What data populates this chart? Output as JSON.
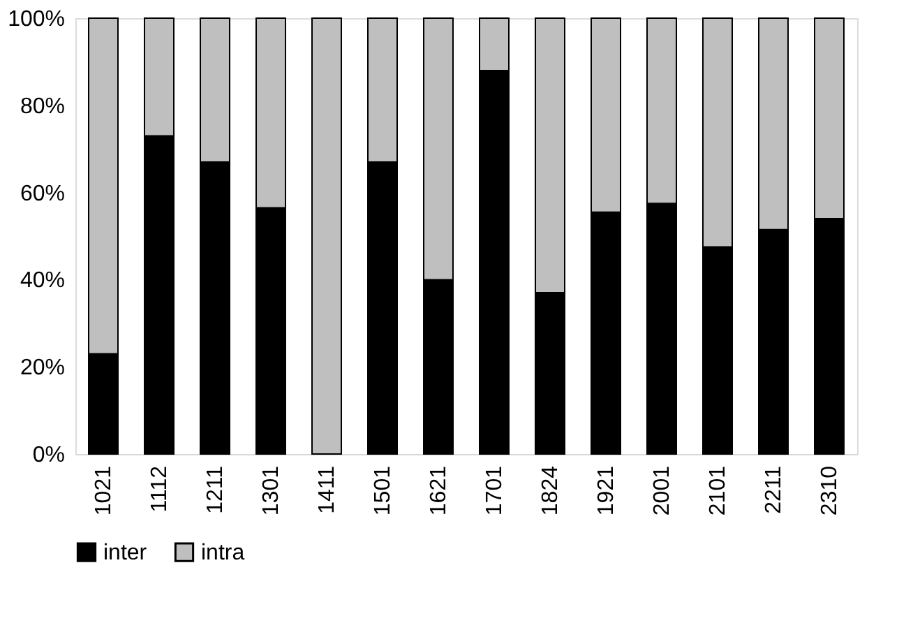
{
  "chart_data": {
    "type": "bar",
    "stacked": true,
    "categories": [
      "1021",
      "1112",
      "1211",
      "1301",
      "1411",
      "1501",
      "1621",
      "1701",
      "1824",
      "1921",
      "2001",
      "2101",
      "2211",
      "2310"
    ],
    "series": [
      {
        "name": "inter",
        "color": "#000000",
        "values": [
          23,
          73,
          67,
          56.5,
          0,
          67,
          40,
          88,
          37,
          55.5,
          57.5,
          47.5,
          51.5,
          54
        ]
      },
      {
        "name": "intra",
        "color": "#bfbfbf",
        "values": [
          77,
          27,
          33,
          43.5,
          100,
          33,
          60,
          12,
          63,
          44.5,
          42.5,
          52.5,
          48.5,
          46
        ]
      }
    ],
    "ylim": [
      0,
      100
    ],
    "yticks": [
      {
        "value": 0,
        "label": "0%"
      },
      {
        "value": 20,
        "label": "20%"
      },
      {
        "value": 40,
        "label": "40%"
      },
      {
        "value": 60,
        "label": "60%"
      },
      {
        "value": 80,
        "label": "80%"
      },
      {
        "value": 100,
        "label": "100%"
      }
    ],
    "grid": false,
    "legend": "bottom"
  }
}
